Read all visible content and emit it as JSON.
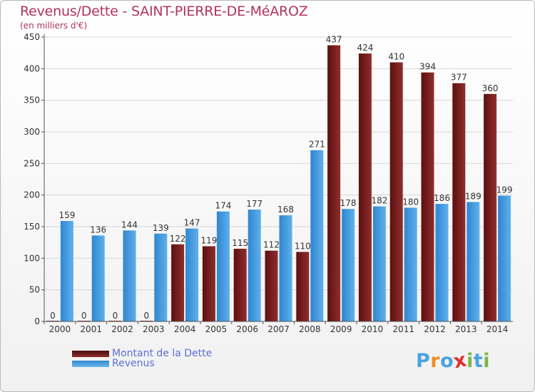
{
  "chart_data": {
    "type": "bar",
    "title": "Revenus/Dette - SAINT-PIERRE-DE-MéAROZ",
    "subtitle": "(en milliers d'€)",
    "categories": [
      "2000",
      "2001",
      "2002",
      "2003",
      "2004",
      "2005",
      "2006",
      "2007",
      "2008",
      "2009",
      "2010",
      "2011",
      "2012",
      "2013",
      "2014"
    ],
    "series": [
      {
        "name": "Montant de la Dette",
        "color": "#7a1c1c",
        "values": [
          0,
          0,
          0,
          0,
          122,
          119,
          115,
          112,
          110,
          437,
          424,
          410,
          394,
          377,
          360
        ]
      },
      {
        "name": "Revenus",
        "color": "#3e95d8",
        "values": [
          159,
          136,
          144,
          139,
          147,
          174,
          177,
          168,
          271,
          178,
          182,
          180,
          186,
          189,
          199
        ]
      }
    ],
    "ylim": [
      0,
      450
    ],
    "yticks": [
      "0",
      "50",
      "100",
      "150",
      "200",
      "250",
      "300",
      "350",
      "400",
      "450"
    ],
    "grid": true,
    "legend_position": "bottom-left"
  },
  "logo": {
    "letters": [
      "P",
      "r",
      "o",
      "x",
      "i",
      "t",
      "i"
    ],
    "colors": [
      "#4aa3df",
      "#f28c28",
      "#4aa3df",
      "#e0312f",
      "#7ab648",
      "#4aa3df",
      "#7ab648"
    ]
  }
}
